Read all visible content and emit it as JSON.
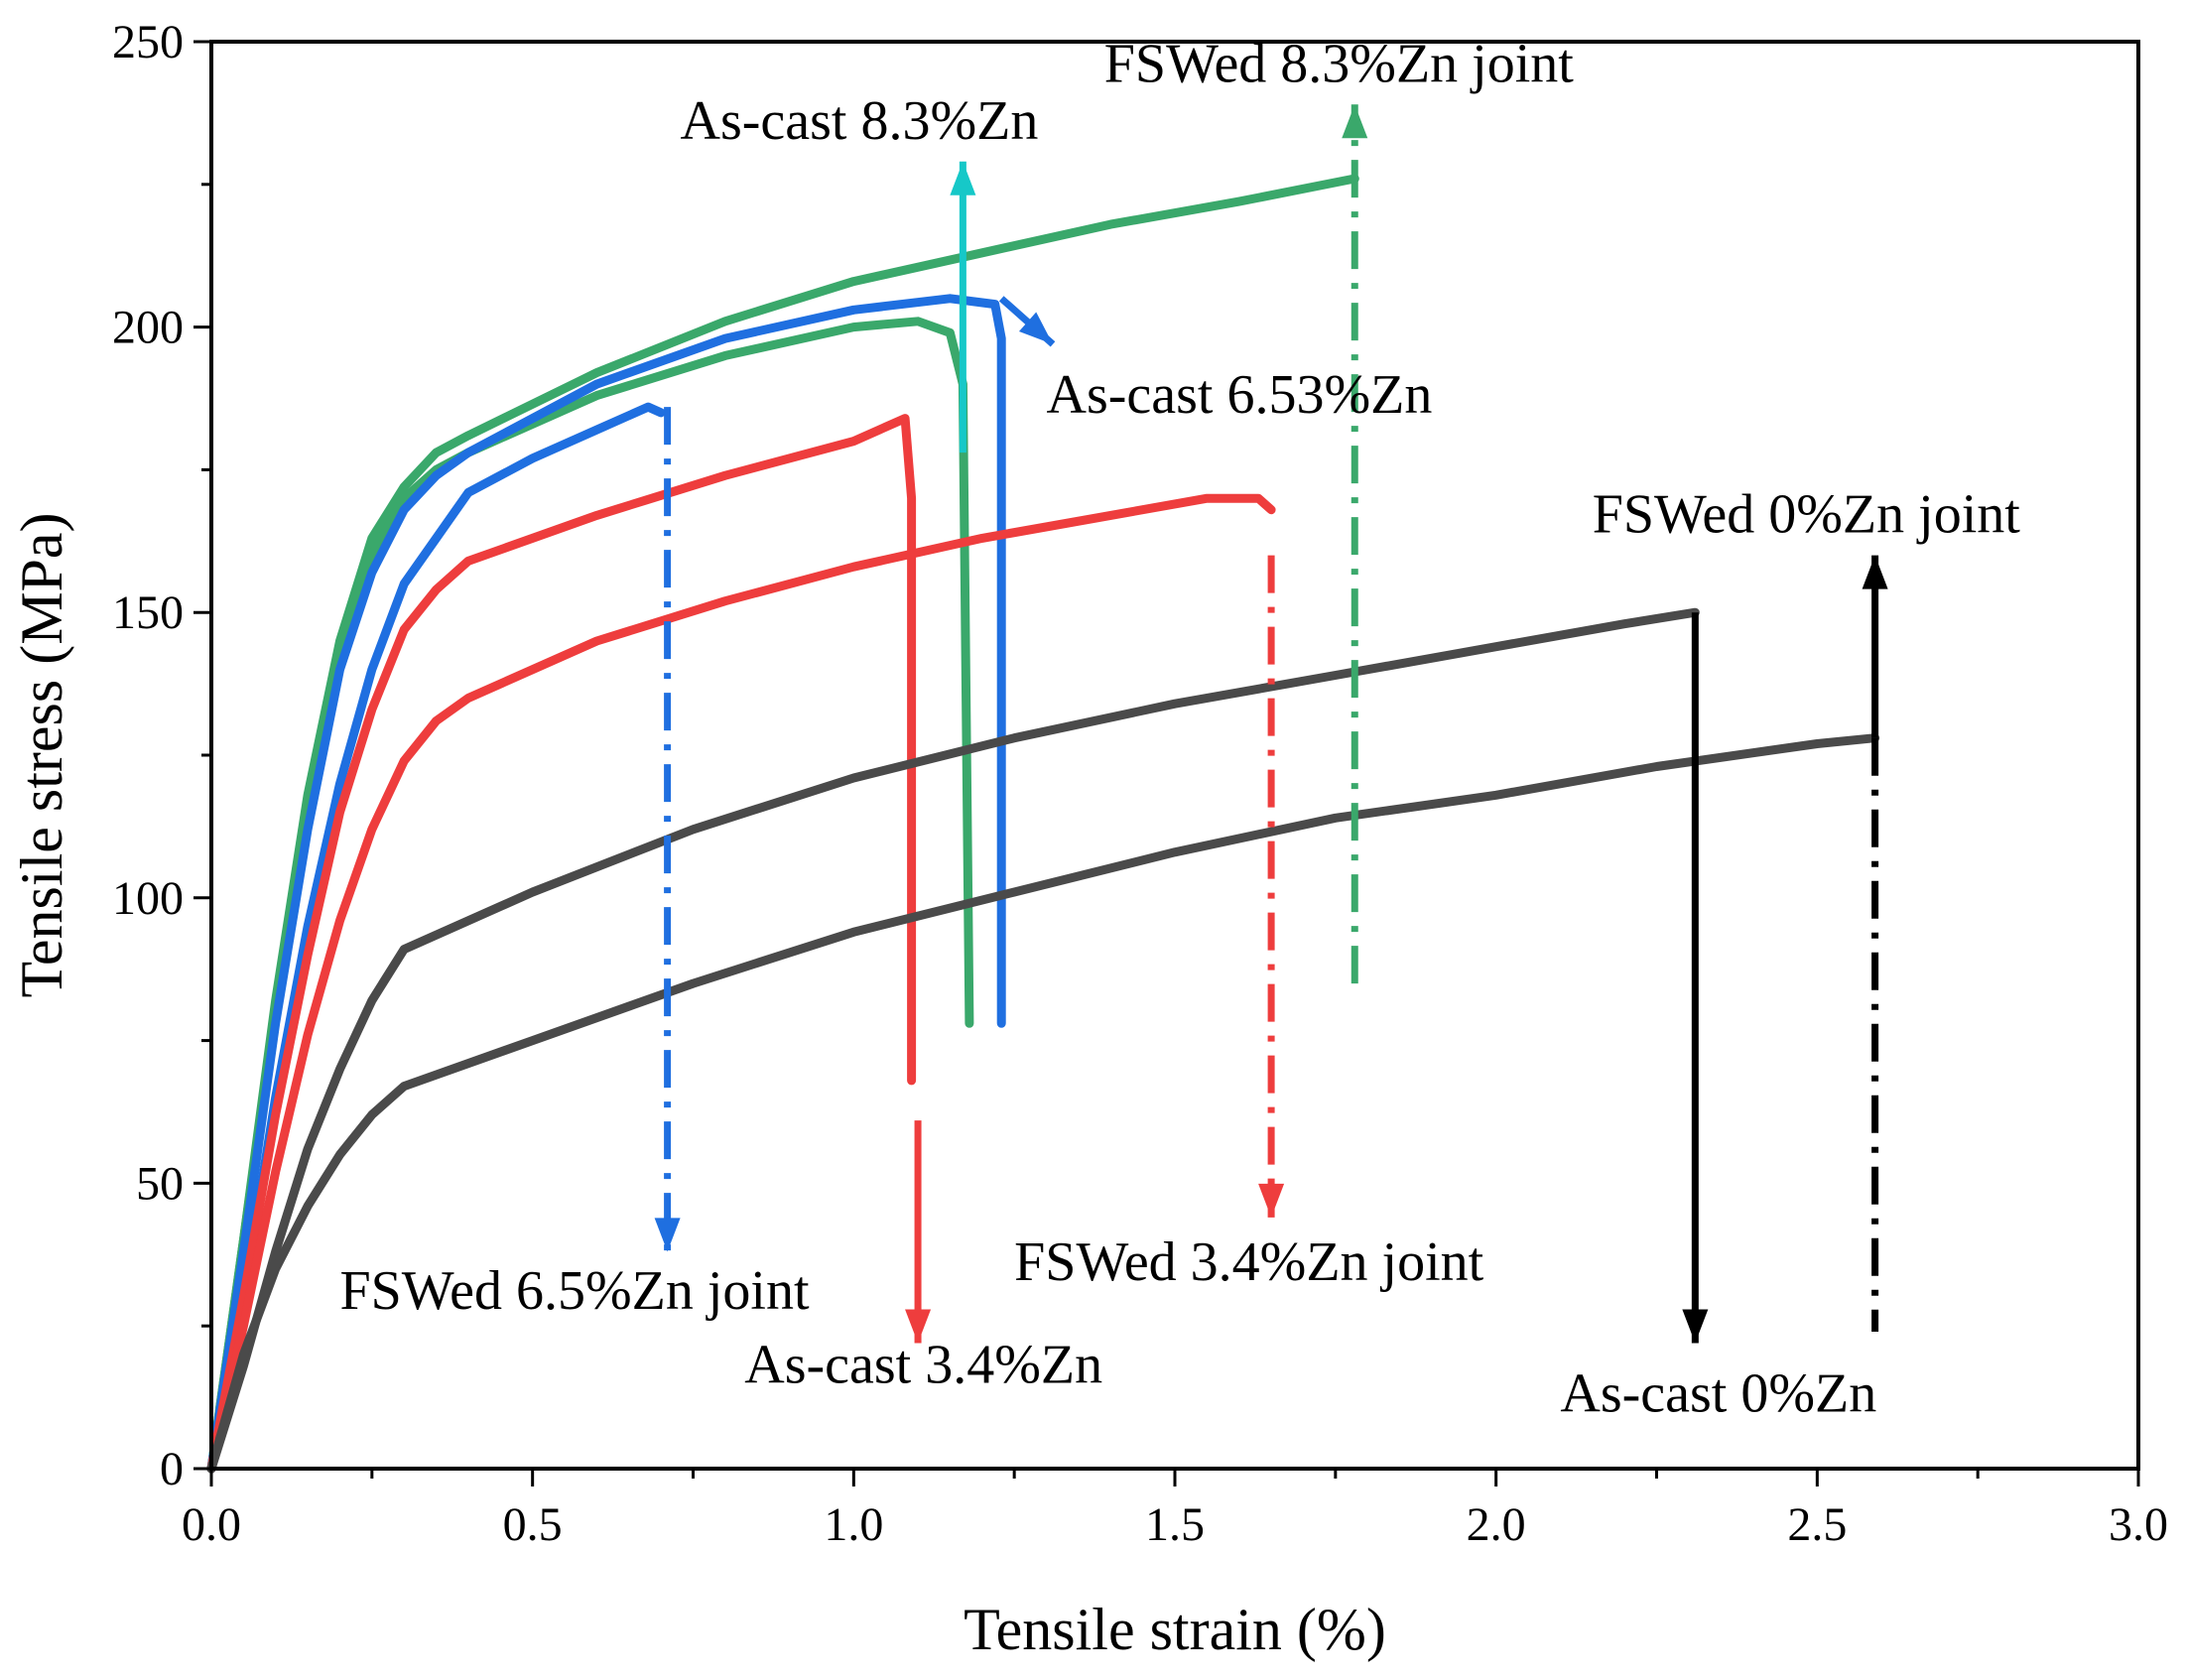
{
  "chart_data": {
    "type": "line",
    "xlabel": "Tensile strain (%)",
    "ylabel": "Tensile stress (MPa)",
    "xlim": [
      0,
      3.0
    ],
    "ylim": [
      0,
      250
    ],
    "x_ticks": [
      0.0,
      0.5,
      1.0,
      1.5,
      2.0,
      2.5,
      3.0
    ],
    "x_tick_labels": [
      "0.0",
      "0.5",
      "1.0",
      "1.5",
      "2.0",
      "2.5",
      "3.0"
    ],
    "y_ticks": [
      0,
      50,
      100,
      150,
      200,
      250
    ],
    "y_tick_labels": [
      "0",
      "50",
      "100",
      "150",
      "200",
      "250"
    ],
    "grid": false,
    "colors": {
      "green": "#3aa86b",
      "blue": "#1f6fe0",
      "red": "#ee3d3d",
      "gray": "#4a4a4a",
      "cyan": "#16c8c8",
      "black": "#000000"
    },
    "series": [
      {
        "color_key": "green",
        "x": [
          0,
          0.05,
          0.1,
          0.15,
          0.2,
          0.25,
          0.3,
          0.35,
          0.4,
          0.6,
          0.8,
          1.0,
          1.2,
          1.4,
          1.6,
          1.78
        ],
        "y": [
          0,
          40,
          82,
          118,
          145,
          163,
          172,
          178,
          181,
          192,
          201,
          208,
          213,
          218,
          222,
          226
        ]
      },
      {
        "color_key": "green",
        "x": [
          0,
          0.05,
          0.1,
          0.15,
          0.2,
          0.25,
          0.3,
          0.35,
          0.4,
          0.6,
          0.8,
          1.0,
          1.1,
          1.15,
          1.17,
          1.18
        ],
        "y": [
          0,
          40,
          80,
          116,
          143,
          160,
          170,
          175,
          178,
          188,
          195,
          200,
          201,
          199,
          190,
          78
        ]
      },
      {
        "color_key": "blue",
        "x": [
          0,
          0.05,
          0.1,
          0.15,
          0.2,
          0.25,
          0.3,
          0.35,
          0.4,
          0.6,
          0.8,
          1.0,
          1.15,
          1.22,
          1.23,
          1.23
        ],
        "y": [
          0,
          38,
          78,
          112,
          140,
          157,
          168,
          174,
          178,
          190,
          198,
          203,
          205,
          204,
          198,
          78
        ]
      },
      {
        "color_key": "blue",
        "x": [
          0,
          0.05,
          0.1,
          0.15,
          0.2,
          0.25,
          0.3,
          0.35,
          0.4,
          0.5,
          0.6,
          0.68,
          0.7
        ],
        "y": [
          0,
          30,
          65,
          95,
          120,
          140,
          155,
          163,
          171,
          177,
          182,
          186,
          185
        ]
      },
      {
        "color_key": "red",
        "x": [
          0,
          0.05,
          0.1,
          0.15,
          0.2,
          0.25,
          0.3,
          0.35,
          0.4,
          0.6,
          0.8,
          1.0,
          1.08,
          1.09,
          1.09
        ],
        "y": [
          0,
          30,
          62,
          90,
          115,
          133,
          147,
          154,
          159,
          167,
          174,
          180,
          184,
          170,
          68
        ]
      },
      {
        "color_key": "red",
        "x": [
          0,
          0.05,
          0.1,
          0.15,
          0.2,
          0.25,
          0.3,
          0.35,
          0.4,
          0.6,
          0.8,
          1.0,
          1.2,
          1.4,
          1.55,
          1.63,
          1.65
        ],
        "y": [
          0,
          25,
          52,
          76,
          96,
          112,
          124,
          131,
          135,
          145,
          152,
          158,
          163,
          167,
          170,
          170,
          168
        ]
      },
      {
        "color_key": "gray",
        "x": [
          0,
          0.05,
          0.1,
          0.15,
          0.2,
          0.25,
          0.3,
          0.5,
          0.75,
          1.0,
          1.25,
          1.5,
          1.75,
          2.0,
          2.2,
          2.31
        ],
        "y": [
          0,
          18,
          38,
          56,
          70,
          82,
          91,
          101,
          112,
          121,
          128,
          134,
          139,
          144,
          148,
          150
        ]
      },
      {
        "color_key": "gray",
        "x": [
          0,
          0.05,
          0.1,
          0.15,
          0.2,
          0.25,
          0.3,
          0.5,
          0.75,
          1.0,
          1.25,
          1.5,
          1.75,
          2.0,
          2.25,
          2.5,
          2.59
        ],
        "y": [
          0,
          20,
          35,
          46,
          55,
          62,
          67,
          75,
          85,
          94,
          101,
          108,
          114,
          118,
          123,
          127,
          128
        ]
      }
    ],
    "annotations": [
      {
        "label": "FSWed 8.3%Zn joint",
        "label_at": [
          1.39,
          243
        ],
        "anchor": "start",
        "arrow_color_key": "green",
        "arrow_dash": "dashdot",
        "arrow_from": [
          1.78,
          85
        ],
        "arrow_to": [
          1.78,
          239
        ]
      },
      {
        "label": "As-cast 8.3%Zn",
        "label_at": [
          0.73,
          233
        ],
        "anchor": "start",
        "arrow_color_key": "cyan",
        "arrow_dash": "solid",
        "arrow_from": [
          1.17,
          178
        ],
        "arrow_to": [
          1.17,
          229
        ]
      },
      {
        "label": "As-cast 6.53%Zn",
        "label_at": [
          1.3,
          185
        ],
        "anchor": "start",
        "arrow_color_key": "blue",
        "arrow_dash": "solid",
        "arrow_from": [
          1.23,
          205
        ],
        "arrow_to": [
          1.31,
          197
        ]
      },
      {
        "label": "FSWed 0%Zn joint",
        "label_at": [
          2.15,
          164
        ],
        "anchor": "start",
        "arrow_color_key": "black",
        "arrow_dash": "solid",
        "arrow_from": [
          2.59,
          128
        ],
        "arrow_to": [
          2.59,
          160
        ]
      },
      {
        "label": "FSWed 6.5%Zn joint",
        "label_at": [
          0.2,
          28
        ],
        "anchor": "start",
        "arrow_color_key": "blue",
        "arrow_dash": "dashdot",
        "arrow_from": [
          0.71,
          186
        ],
        "arrow_to": [
          0.71,
          38
        ]
      },
      {
        "label": "As-cast 3.4%Zn",
        "label_at": [
          0.83,
          15
        ],
        "anchor": "start",
        "arrow_color_key": "red",
        "arrow_dash": "solid",
        "arrow_from": [
          1.1,
          61
        ],
        "arrow_to": [
          1.1,
          22
        ]
      },
      {
        "label": "FSWed 3.4%Zn joint",
        "label_at": [
          1.25,
          33
        ],
        "anchor": "start",
        "arrow_color_key": "red",
        "arrow_dash": "dashdot",
        "arrow_from": [
          1.65,
          160
        ],
        "arrow_to": [
          1.65,
          44
        ]
      },
      {
        "label": "As-cast 0%Zn",
        "label_at": [
          2.1,
          10
        ],
        "anchor": "start",
        "arrow_color_key": "black",
        "arrow_dash": "solid",
        "arrow_from": [
          2.31,
          150
        ],
        "arrow_to": [
          2.31,
          22
        ]
      },
      {
        "label": "",
        "label_at": null,
        "anchor": "start",
        "arrow_color_key": "black",
        "arrow_dash": "dashdot",
        "arrow_from": [
          2.59,
          128
        ],
        "arrow_to": [
          2.59,
          24
        ],
        "no_head": true
      }
    ]
  }
}
